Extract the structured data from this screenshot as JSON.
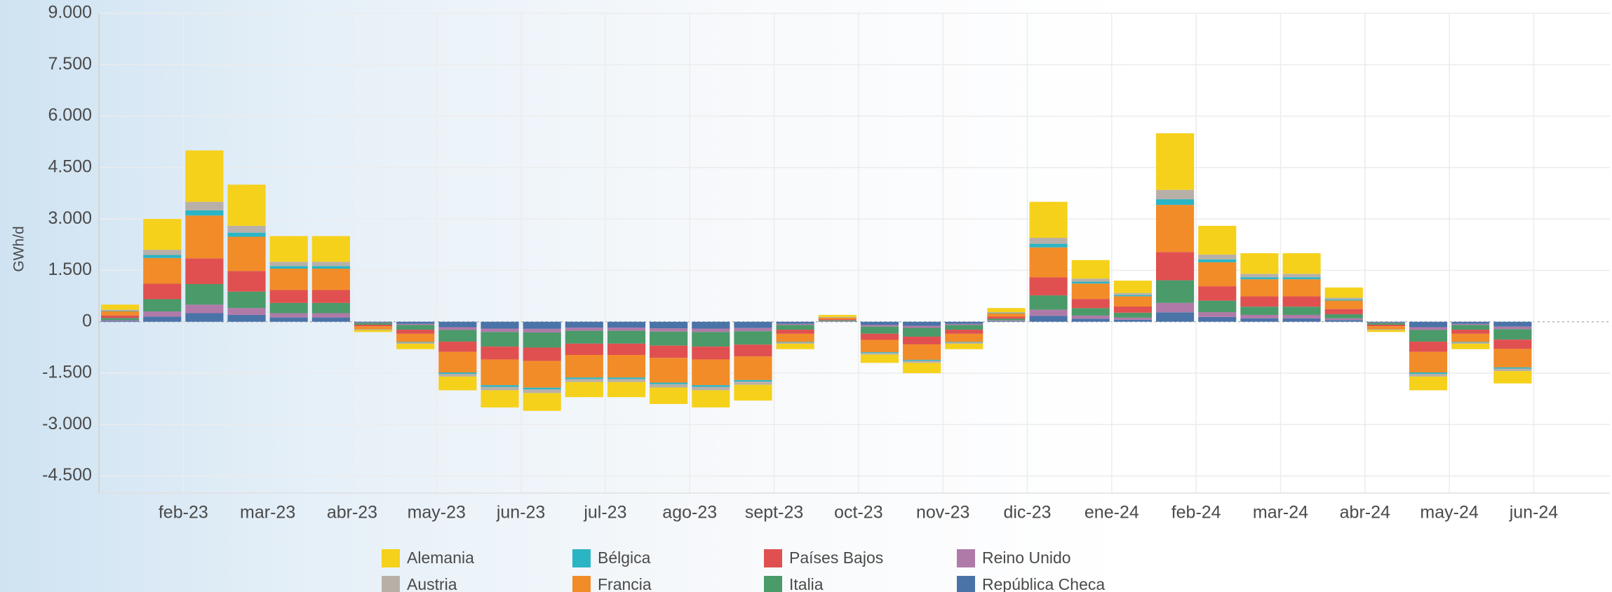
{
  "chart_data": {
    "type": "bar",
    "stacked": true,
    "y_label": "GWh/d",
    "categories": [
      null,
      null,
      "feb-23",
      null,
      "mar-23",
      null,
      "abr-23",
      null,
      "may-23",
      null,
      "jun-23",
      null,
      "jul-23",
      null,
      "ago-23",
      null,
      "sept-23",
      null,
      "oct-23",
      null,
      "nov-23",
      null,
      "dic-23",
      null,
      "ene-24",
      null,
      "feb-24",
      null,
      "mar-24",
      null,
      "abr-24",
      null,
      "may-24",
      null,
      "jun-24"
    ],
    "series": [
      {
        "name": "Alemania",
        "color": "#f5d11b",
        "values": [
          150,
          900,
          1500,
          1200,
          750,
          750,
          -60,
          -160,
          -400,
          -500,
          -520,
          -440,
          -440,
          -480,
          -500,
          -460,
          -160,
          60,
          -240,
          -300,
          -160,
          120,
          1050,
          540,
          360,
          1650,
          840,
          600,
          600,
          300,
          -60,
          -400,
          -160,
          -360,
          null
        ]
      },
      {
        "name": "Austria",
        "color": "#b8b0a8",
        "values": [
          25,
          150,
          250,
          200,
          125,
          125,
          -12,
          -32,
          -80,
          -100,
          -104,
          -88,
          -88,
          -96,
          -100,
          -92,
          -32,
          10,
          -48,
          -60,
          -32,
          20,
          175,
          90,
          60,
          275,
          140,
          100,
          100,
          50,
          -12,
          -80,
          -32,
          -72,
          null
        ]
      },
      {
        "name": "Bélgica",
        "color": "#2bb5c4",
        "values": [
          15,
          90,
          150,
          120,
          75,
          75,
          -6,
          -16,
          -40,
          -50,
          -52,
          -44,
          -44,
          -48,
          -50,
          -46,
          -16,
          6,
          -24,
          -30,
          -16,
          12,
          105,
          54,
          36,
          165,
          84,
          60,
          60,
          30,
          -6,
          -40,
          -16,
          -36,
          null
        ]
      },
      {
        "name": "Francia",
        "color": "#f28c28",
        "values": [
          125,
          750,
          1250,
          1000,
          625,
          625,
          -90,
          -240,
          -600,
          -750,
          -780,
          -660,
          -660,
          -720,
          -750,
          -690,
          -240,
          50,
          -360,
          -450,
          -240,
          100,
          875,
          450,
          300,
          1375,
          700,
          500,
          500,
          250,
          -90,
          -600,
          -240,
          -540,
          null
        ]
      },
      {
        "name": "Países Bajos",
        "color": "#e05050",
        "values": [
          75,
          450,
          750,
          600,
          375,
          375,
          -45,
          -120,
          -300,
          -375,
          -390,
          -330,
          -330,
          -360,
          -375,
          -345,
          -120,
          30,
          -180,
          -225,
          -120,
          60,
          525,
          270,
          180,
          825,
          420,
          300,
          300,
          150,
          -45,
          -300,
          -120,
          -270,
          null
        ]
      },
      {
        "name": "Italia",
        "color": "#4a9a6a",
        "values": [
          60,
          360,
          600,
          480,
          300,
          300,
          -51,
          -136,
          -340,
          -425,
          -442,
          -374,
          -374,
          -408,
          -425,
          -391,
          -136,
          24,
          -204,
          -255,
          -136,
          48,
          420,
          216,
          144,
          660,
          336,
          240,
          240,
          120,
          -51,
          -340,
          -136,
          -306,
          null
        ]
      },
      {
        "name": "Reino Unido",
        "color": "#b07aa8",
        "values": [
          25,
          150,
          250,
          200,
          125,
          125,
          -12,
          -32,
          -80,
          -100,
          -104,
          -88,
          -88,
          -96,
          -100,
          -92,
          -32,
          10,
          -48,
          -60,
          -32,
          20,
          175,
          90,
          60,
          275,
          140,
          100,
          100,
          50,
          -12,
          -80,
          -32,
          -72,
          null
        ]
      },
      {
        "name": "República Checa",
        "color": "#4a73a8",
        "values": [
          25,
          150,
          250,
          200,
          125,
          125,
          -24,
          -64,
          -160,
          -200,
          -208,
          -176,
          -176,
          -192,
          -200,
          -184,
          -64,
          10,
          -96,
          -120,
          -64,
          20,
          175,
          90,
          60,
          275,
          140,
          100,
          100,
          50,
          -24,
          -160,
          -64,
          -144,
          null
        ]
      }
    ],
    "ylim": [
      -5000,
      9000
    ],
    "yticks": [
      {
        "value": 9000,
        "label": "9.000"
      },
      {
        "value": 7500,
        "label": "7.500"
      },
      {
        "value": 6000,
        "label": "6.000"
      },
      {
        "value": 4500,
        "label": "4.500"
      },
      {
        "value": 3000,
        "label": "3.000"
      },
      {
        "value": 1500,
        "label": "1.500"
      },
      0,
      {
        "value": -1500,
        "label": "-1.500"
      },
      {
        "value": -3000,
        "label": "-3.000"
      },
      {
        "value": -4500,
        "label": "-4.500"
      }
    ],
    "grid": true,
    "legend": "bottom"
  }
}
